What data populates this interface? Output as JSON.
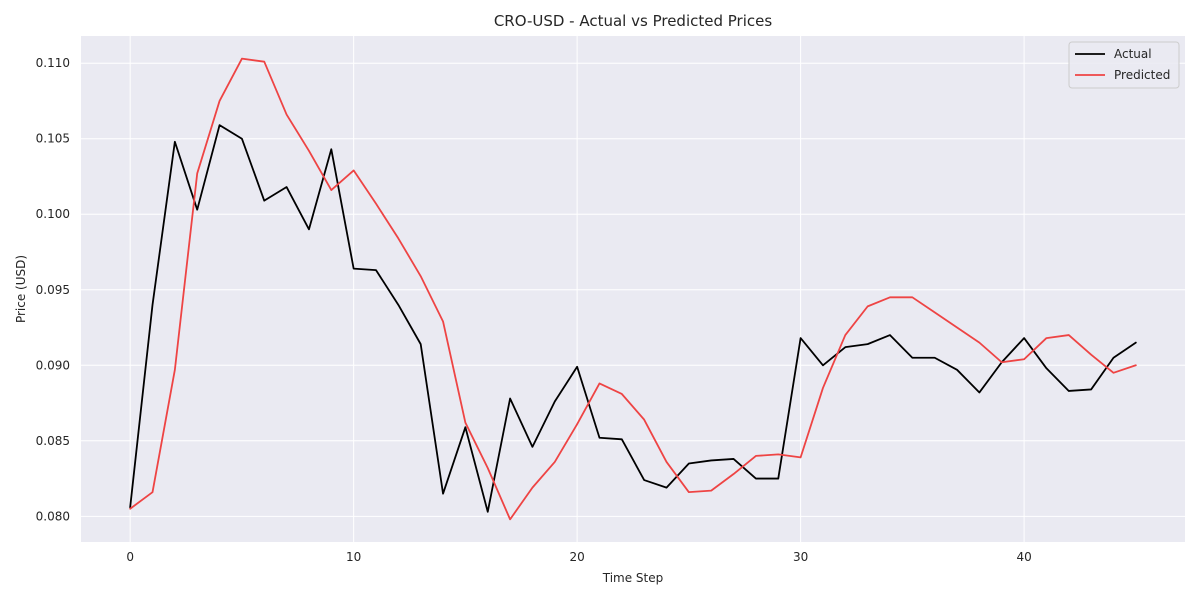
{
  "chart_data": {
    "type": "line",
    "title": "CRO-USD - Actual vs Predicted Prices",
    "xlabel": "Time Step",
    "ylabel": "Price (USD)",
    "xlim": [
      -2.2,
      47.2
    ],
    "ylim": [
      0.0783,
      0.1118
    ],
    "xticks": [
      0,
      10,
      20,
      30,
      40
    ],
    "xtick_labels": [
      "0",
      "10",
      "20",
      "30",
      "40"
    ],
    "yticks": [
      0.08,
      0.085,
      0.09,
      0.095,
      0.1,
      0.105,
      0.11
    ],
    "ytick_labels": [
      "0.080",
      "0.085",
      "0.090",
      "0.095",
      "0.100",
      "0.105",
      "0.110"
    ],
    "grid": true,
    "legend_position": "top-right",
    "x": [
      0,
      1,
      2,
      3,
      4,
      5,
      6,
      7,
      8,
      9,
      10,
      11,
      12,
      13,
      14,
      15,
      16,
      17,
      18,
      19,
      20,
      21,
      22,
      23,
      24,
      25,
      26,
      27,
      28,
      29,
      30,
      31,
      32,
      33,
      34,
      35,
      36,
      37,
      38,
      39,
      40,
      41,
      42,
      43,
      44,
      45
    ],
    "series": [
      {
        "name": "Actual",
        "color": "#000000",
        "values": [
          0.0806,
          0.094,
          0.1048,
          0.1003,
          0.1059,
          0.105,
          0.1009,
          0.1018,
          0.099,
          0.1043,
          0.0964,
          0.0963,
          0.094,
          0.0914,
          0.0815,
          0.0859,
          0.0803,
          0.0878,
          0.0846,
          0.0876,
          0.0899,
          0.0852,
          0.0851,
          0.0824,
          0.0819,
          0.0835,
          0.0837,
          0.0838,
          0.0825,
          0.0825,
          0.0918,
          0.09,
          0.0912,
          0.0914,
          0.092,
          0.0905,
          0.0905,
          0.0897,
          0.0882,
          0.0902,
          0.0918,
          0.0898,
          0.0883,
          0.0884,
          0.0905,
          0.0915
        ]
      },
      {
        "name": "Predicted",
        "color": "#ee4444",
        "values": [
          0.0805,
          0.0816,
          0.0897,
          0.1027,
          0.1075,
          0.1103,
          0.1101,
          0.1066,
          0.1042,
          0.1016,
          0.1029,
          0.1007,
          0.0984,
          0.0959,
          0.0929,
          0.0862,
          0.0832,
          0.0798,
          0.0819,
          0.0836,
          0.0861,
          0.0888,
          0.0881,
          0.0864,
          0.0836,
          0.0816,
          0.0817,
          0.0828,
          0.084,
          0.0841,
          0.0839,
          0.0885,
          0.092,
          0.0939,
          0.0945,
          0.0945,
          0.0935,
          0.0925,
          0.0915,
          0.0902,
          0.0904,
          0.0918,
          0.092,
          0.0907,
          0.0895,
          0.09
        ]
      }
    ]
  },
  "colors": {
    "plot_background": "#eaeaf2",
    "grid": "#ffffff",
    "actual": "#000000",
    "predicted": "#ee4444"
  }
}
